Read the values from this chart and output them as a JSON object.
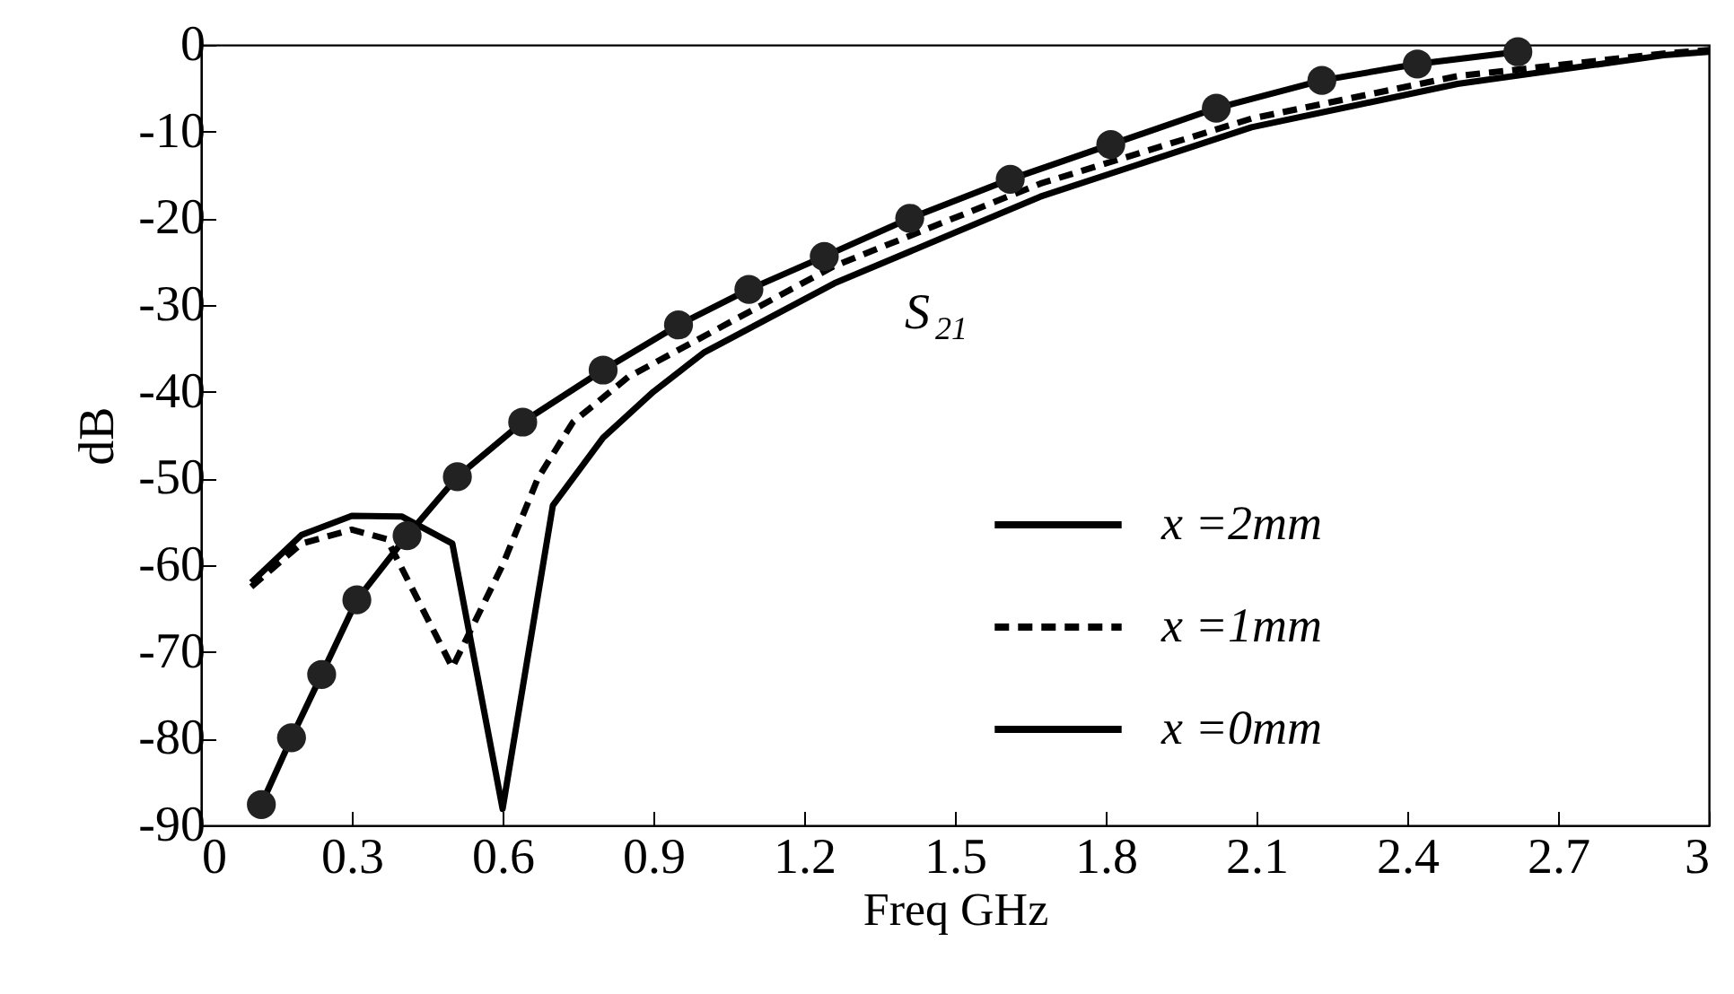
{
  "chart_data": {
    "type": "line",
    "xlabel": "Freq GHz",
    "ylabel": "dB",
    "xlim": [
      0,
      3
    ],
    "xticks": [
      0,
      0.3,
      0.6,
      0.9,
      1.2,
      1.5,
      1.8,
      2.1,
      2.4,
      2.7,
      3
    ],
    "ylim": [
      -90,
      0
    ],
    "yticks": [
      0,
      -10,
      -20,
      -30,
      -40,
      -50,
      -60,
      -70,
      -80,
      -90
    ],
    "grid": false,
    "legend": "right",
    "annotations": [
      "S$_{21}$"
    ],
    "series": [
      {
        "name": "x =2mm",
        "color": "#000000",
        "marker": "circle",
        "line_style": "solid",
        "x": [
          0.12,
          0.18,
          0.24,
          0.31,
          0.41,
          0.51,
          0.64,
          0.8,
          0.95,
          1.09,
          1.24,
          1.41,
          1.61,
          1.81,
          2.02,
          2.23,
          2.42,
          2.62
        ],
        "values": [
          -87.6,
          -79.9,
          -72.6,
          -64,
          -56.6,
          -49.8,
          -43.5,
          -37.5,
          -32.3,
          -28.2,
          -24.4,
          -20,
          -15.5,
          -11.5,
          -7.3,
          -4.1,
          -2.2,
          -0.8
        ]
      },
      {
        "name": "x =1mm",
        "color": "#000000",
        "marker": "none",
        "line_style": "dashed",
        "x": [
          0.1,
          0.2,
          0.3,
          0.37,
          0.5,
          0.6,
          0.67,
          0.74,
          0.85,
          1.26,
          1.67,
          2.09,
          2.5,
          2.91,
          3
        ],
        "values": [
          -62.5,
          -57.5,
          -55.9,
          -57,
          -71.8,
          -60,
          -50,
          -43.5,
          -38.3,
          -25.5,
          -16,
          -8.5,
          -3.6,
          -1,
          -0.6
        ]
      },
      {
        "name": "x =0mm",
        "color": "#000000",
        "marker": "none",
        "line_style": "solid",
        "x": [
          0.1,
          0.2,
          0.3,
          0.4,
          0.5,
          0.6,
          0.7,
          0.8,
          0.9,
          1.0,
          1.26,
          1.67,
          2.09,
          2.5,
          2.91,
          3
        ],
        "values": [
          -62,
          -56.5,
          -54.3,
          -54.4,
          -57.5,
          -88.1,
          -53.1,
          -45.3,
          -40,
          -35.5,
          -27.5,
          -17.5,
          -9.5,
          -4.5,
          -1.2,
          -0.8
        ]
      }
    ]
  }
}
